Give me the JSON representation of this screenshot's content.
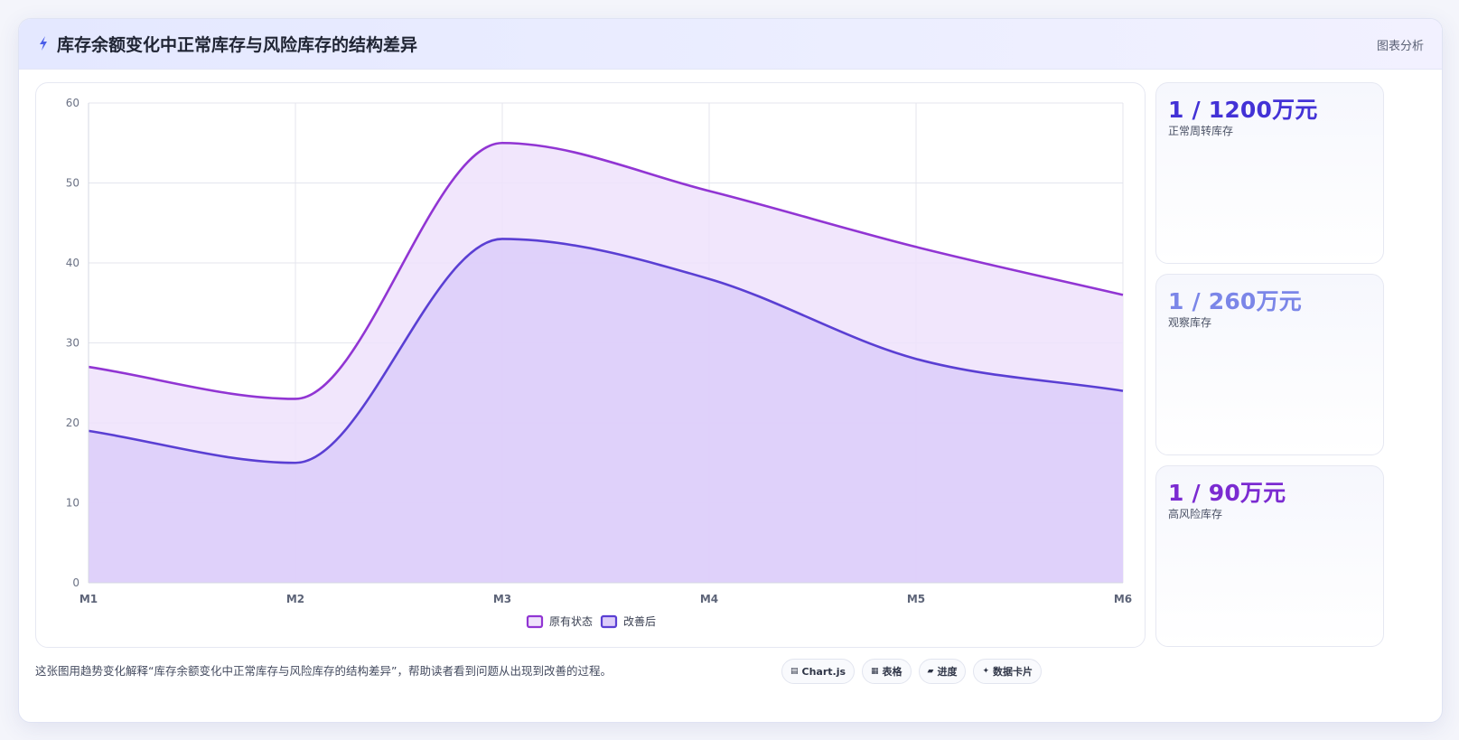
{
  "header": {
    "icon": "lightning-icon",
    "title": "库存余额变化中正常库存与风险库存的结构差异",
    "right_label": "图表分析"
  },
  "kpis": [
    {
      "value": "1 / 1200万元",
      "label": "正常周转库存",
      "color": "#4332d6"
    },
    {
      "value": "1 / 260万元",
      "label": "观察库存",
      "color": "#7b86e8"
    },
    {
      "value": "1 / 90万元",
      "label": "高风险库存",
      "color": "#7b2bd1"
    }
  ],
  "footer": {
    "description": "这张图用趋势变化解释“库存余额变化中正常库存与风险库存的结构差异”，帮助读者看到问题从出现到改善的过程。",
    "pills": [
      {
        "icon": "chart-icon",
        "label": "Chart.js"
      },
      {
        "icon": "table-icon",
        "label": "表格"
      },
      {
        "icon": "progress-icon",
        "label": "进度"
      },
      {
        "icon": "sparkle-icon",
        "label": "数据卡片"
      }
    ]
  },
  "chart_data": {
    "type": "area",
    "categories": [
      "M1",
      "M2",
      "M3",
      "M4",
      "M5",
      "M6"
    ],
    "ylim": [
      0,
      60
    ],
    "yticks": [
      0,
      10,
      20,
      30,
      40,
      50,
      60
    ],
    "grid": true,
    "legend_position": "bottom",
    "title": "",
    "xlabel": "",
    "ylabel": "",
    "series": [
      {
        "name": "原有状态",
        "values": [
          27,
          23,
          55,
          49,
          42,
          36
        ],
        "color": "#9135d3",
        "fill": "#efe2fb"
      },
      {
        "name": "改善后",
        "values": [
          19,
          15,
          43,
          38,
          28,
          24
        ],
        "color": "#5a3fd3",
        "fill": "#dccdf9"
      }
    ]
  }
}
